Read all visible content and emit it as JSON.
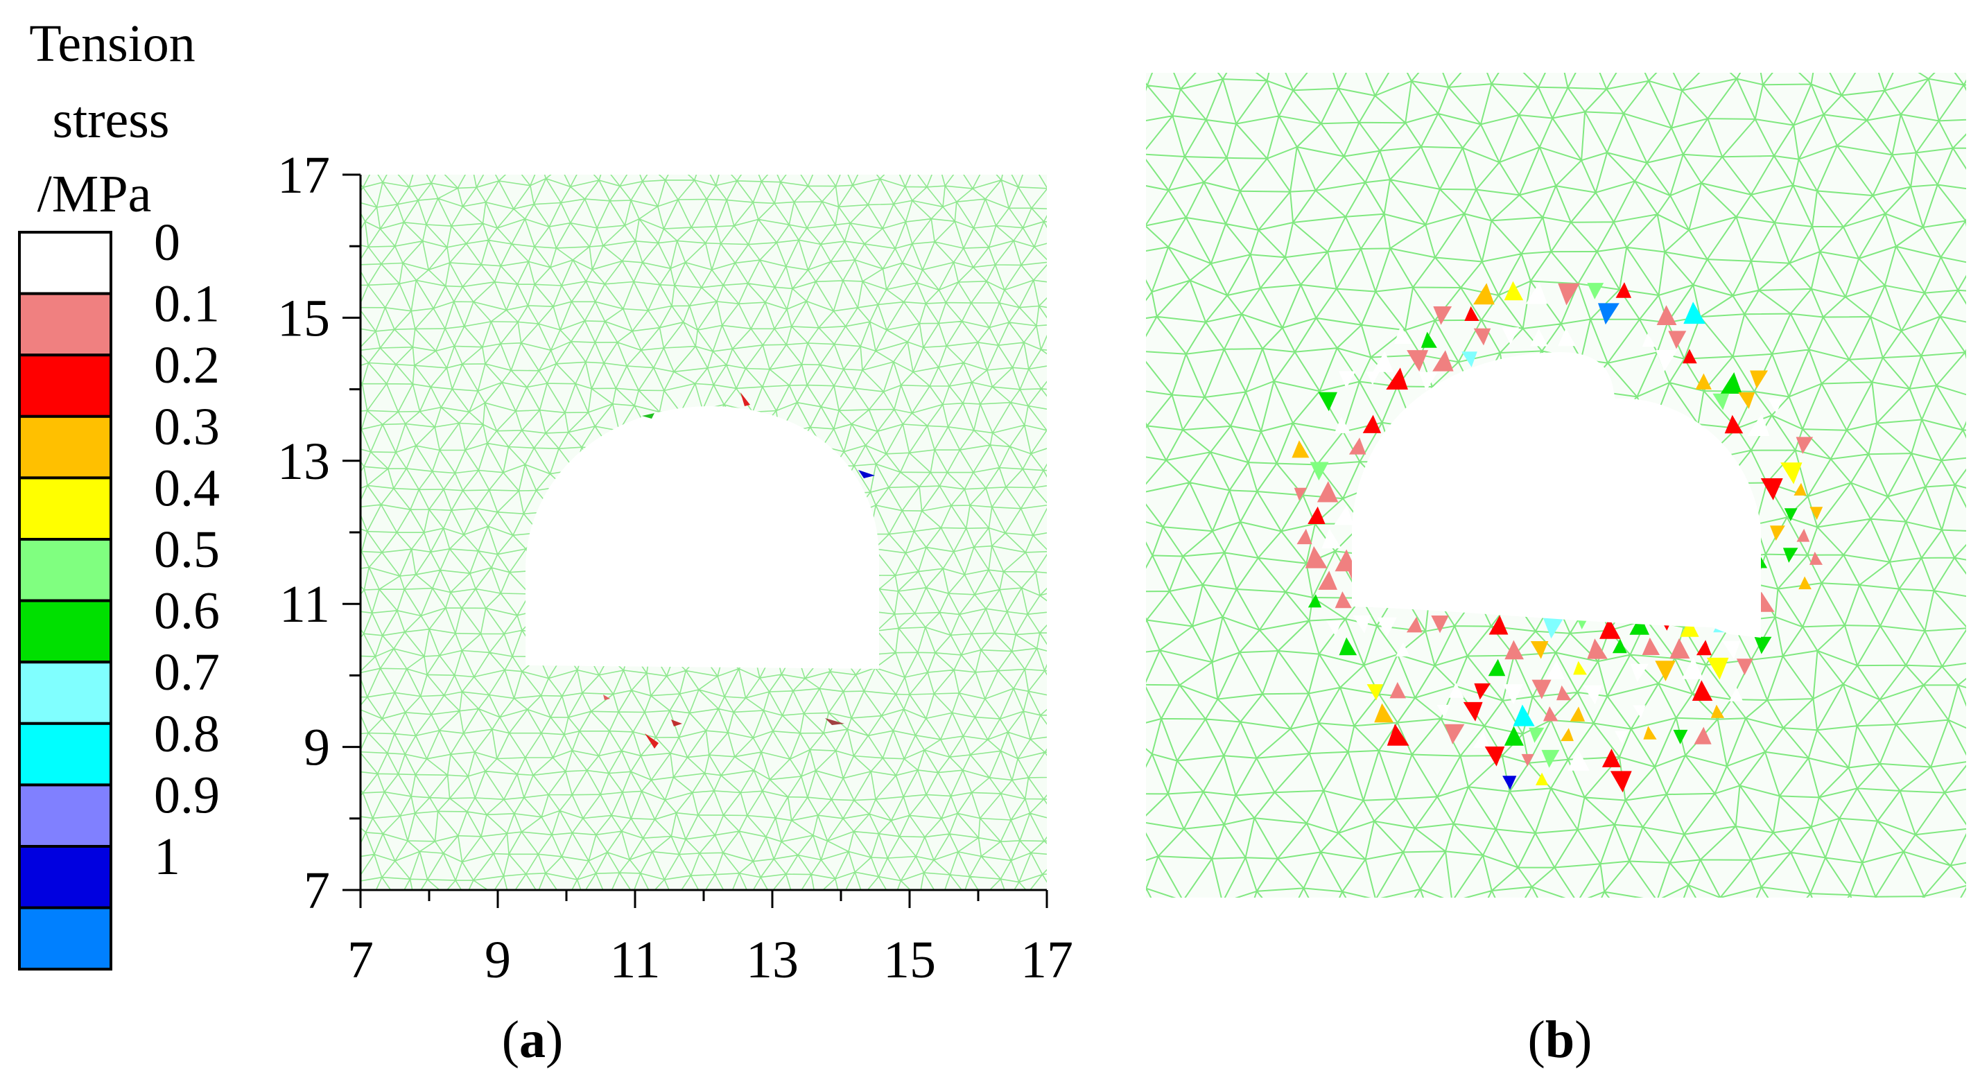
{
  "legend": {
    "title_lines": [
      "Tension",
      "stress",
      "/MPa"
    ],
    "levels": [
      {
        "label": "0",
        "color": "#ffffff"
      },
      {
        "label": "0.1",
        "color": "#f08080"
      },
      {
        "label": "0.2",
        "color": "#ff0000"
      },
      {
        "label": "0.3",
        "color": "#ffc000"
      },
      {
        "label": "0.4",
        "color": "#ffff00"
      },
      {
        "label": "0.5",
        "color": "#80ff80"
      },
      {
        "label": "0.6",
        "color": "#00e000"
      },
      {
        "label": "0.7",
        "color": "#80ffff"
      },
      {
        "label": "0.8",
        "color": "#00ffff"
      },
      {
        "label": "0.9",
        "color": "#8080ff"
      },
      {
        "label": "1",
        "color": "#0000e0"
      },
      {
        "label": "",
        "color": "#0080ff"
      }
    ]
  },
  "panel_a": {
    "caption_open": "(",
    "caption_letter": "a",
    "caption_close": ")",
    "x_ticks": [
      "7",
      "9",
      "11",
      "13",
      "15",
      "17"
    ],
    "y_ticks": [
      "17",
      "15",
      "13",
      "11",
      "9",
      "7"
    ],
    "xlim": [
      7,
      17
    ],
    "ylim": [
      7,
      17
    ],
    "mesh_color": "#90e890"
  },
  "panel_b": {
    "caption_open": "(",
    "caption_letter": "b",
    "caption_close": ")",
    "mesh_color": "#80e880"
  }
}
